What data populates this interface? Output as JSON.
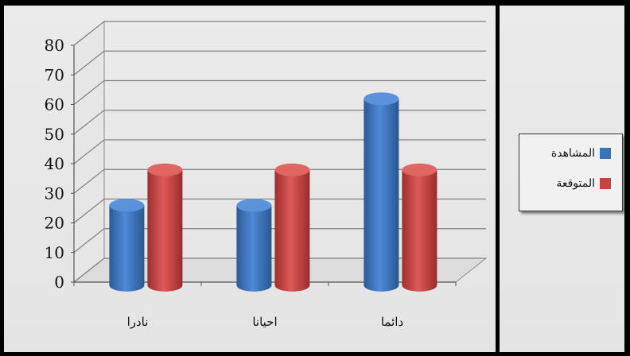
{
  "chart_data": {
    "type": "bar",
    "categories": [
      "نادرا",
      "احيانا",
      "دائما"
    ],
    "series": [
      {
        "name": "المشاهدة",
        "values": [
          27,
          27,
          63
        ],
        "color": "#3b73b9"
      },
      {
        "name": "المتوقعة",
        "values": [
          39,
          39,
          39
        ],
        "color": "#c84241"
      }
    ],
    "ylim": [
      0,
      80
    ],
    "yticks": [
      0,
      10,
      20,
      30,
      40,
      50,
      60,
      70,
      80
    ],
    "grid": true,
    "legend_position": "right",
    "style": "3d-cylinder"
  }
}
